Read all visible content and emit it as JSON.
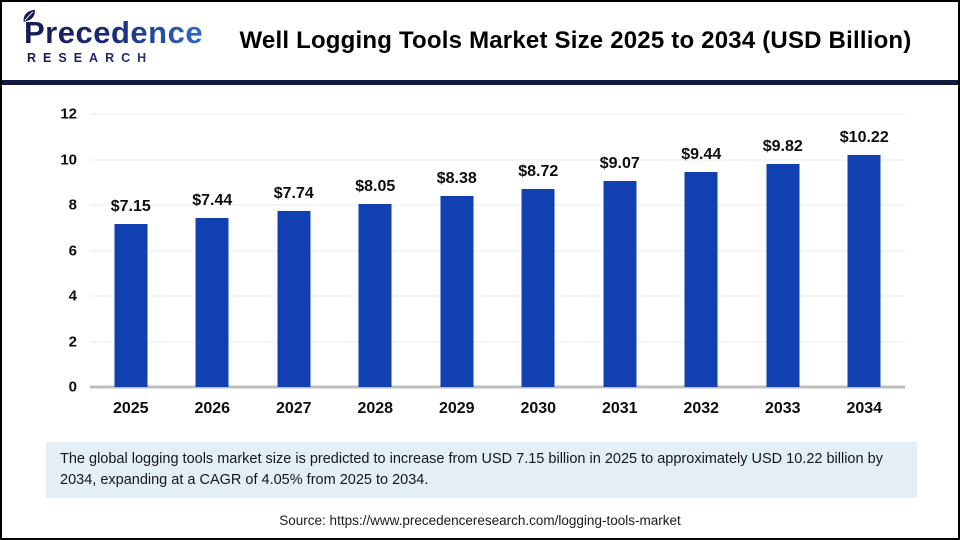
{
  "page": {
    "header": {
      "logo_line1": "Precedence",
      "logo_line2": "RESEARCH",
      "title": "Well Logging Tools Market Size 2025 to 2034 (USD Billion)"
    },
    "footer_note": "The global logging tools market size is predicted to increase from USD 7.15 billion in 2025 to approximately USD 10.22 billion by 2034, expanding at a CAGR of 4.05% from 2025 to 2034.",
    "source": "Source: https://www.precedenceresearch.com/logging-tools-market"
  },
  "chart_data": {
    "type": "bar",
    "title": "Well Logging Tools Market Size 2025 to 2034 (USD Billion)",
    "categories": [
      "2025",
      "2026",
      "2027",
      "2028",
      "2029",
      "2030",
      "2031",
      "2032",
      "2033",
      "2034"
    ],
    "values": [
      7.15,
      7.44,
      7.74,
      8.05,
      8.38,
      8.72,
      9.07,
      9.44,
      9.82,
      10.22
    ],
    "data_labels": [
      "$7.15",
      "$7.44",
      "$7.74",
      "$8.05",
      "$8.38",
      "$8.72",
      "$9.07",
      "$9.44",
      "$9.82",
      "$10.22"
    ],
    "xlabel": "",
    "ylabel": "",
    "ylim": [
      0,
      12
    ],
    "yticks": [
      0,
      2,
      4,
      6,
      8,
      10,
      12
    ],
    "grid": true,
    "legend_position": "none",
    "bar_color": "#1141B0",
    "gridline_color": "#EDEDED",
    "baseline_color": "#BDBDBD"
  },
  "colors": {
    "divider_navy": "#10193F",
    "note_bg": "#E4EEF7",
    "logo_navy": "#171A52",
    "logo_blue": "#3575D8"
  }
}
